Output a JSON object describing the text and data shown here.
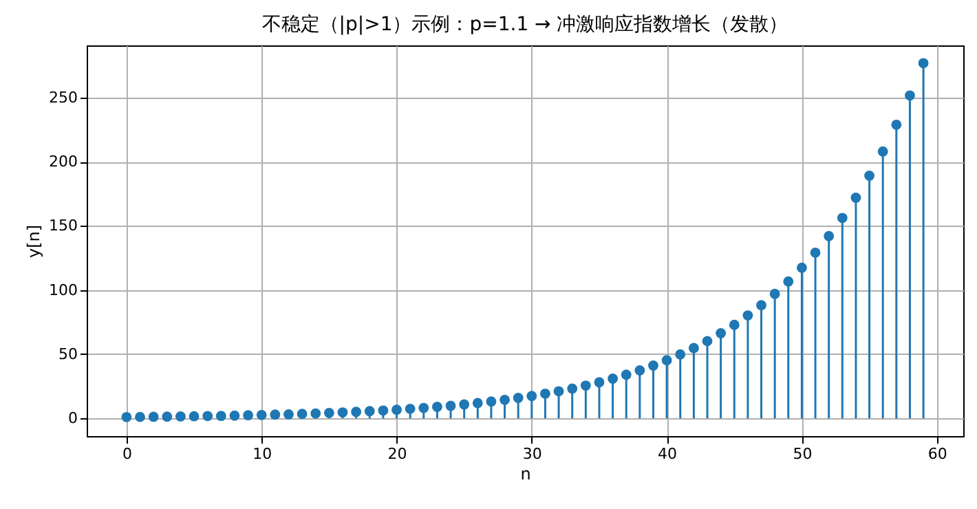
{
  "chart_data": {
    "type": "lollipop",
    "title": "不稳定（|p|>1）示例：p=1.1 → 冲激响应指数增长（发散）",
    "xlabel": "n",
    "ylabel": "y[n]",
    "x": [
      0,
      1,
      2,
      3,
      4,
      5,
      6,
      7,
      8,
      9,
      10,
      11,
      12,
      13,
      14,
      15,
      16,
      17,
      18,
      19,
      20,
      21,
      22,
      23,
      24,
      25,
      26,
      27,
      28,
      29,
      30,
      31,
      32,
      33,
      34,
      35,
      36,
      37,
      38,
      39,
      40,
      41,
      42,
      43,
      44,
      45,
      46,
      47,
      48,
      49,
      50,
      51,
      52,
      53,
      54,
      55,
      56,
      57,
      58,
      59
    ],
    "values": [
      1.0,
      1.1,
      1.2,
      1.3,
      1.5,
      1.6,
      1.8,
      1.9,
      2.1,
      2.4,
      2.6,
      2.9,
      3.1,
      3.5,
      3.8,
      4.2,
      4.6,
      5.1,
      5.6,
      6.1,
      6.7,
      7.4,
      8.1,
      9.0,
      9.8,
      10.8,
      11.9,
      13.1,
      14.4,
      15.9,
      17.4,
      19.2,
      21.1,
      23.2,
      25.5,
      28.1,
      30.9,
      34.0,
      37.4,
      41.1,
      45.3,
      49.8,
      54.8,
      60.2,
      66.3,
      72.9,
      80.2,
      88.2,
      97.0,
      106.7,
      117.4,
      129.1,
      142.0,
      156.2,
      171.9,
      189.1,
      208.0,
      228.8,
      251.6,
      276.8
    ],
    "color": "#1f77b4",
    "marker": "circle",
    "xlim": [
      -2.95,
      61.95
    ],
    "ylim": [
      -13.84,
      290.64
    ],
    "xticks": [
      0,
      10,
      20,
      30,
      40,
      50,
      60
    ],
    "yticks": [
      0,
      50,
      100,
      150,
      200,
      250
    ],
    "grid": true
  }
}
